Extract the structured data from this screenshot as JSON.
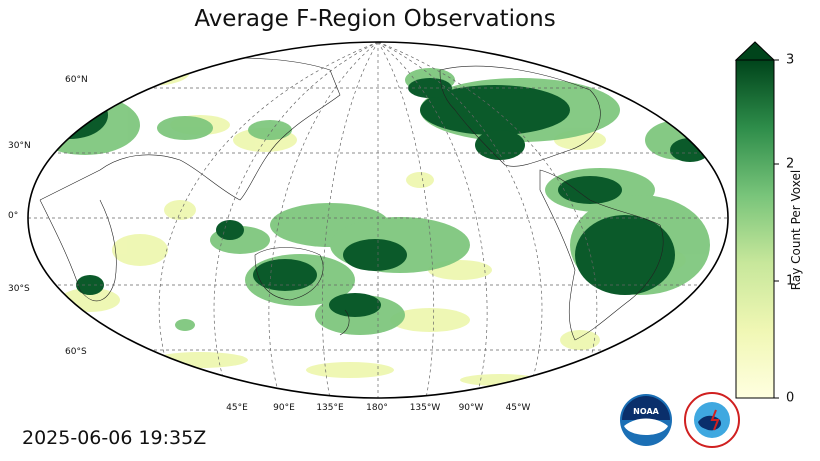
{
  "title": "Average F-Region Observations",
  "timestamp": "2025-06-06 19:35Z",
  "latitude_labels": [
    "60°N",
    "30°N",
    "0°",
    "30°S",
    "60°S"
  ],
  "longitude_labels": [
    "45°E",
    "90°E",
    "135°E",
    "180°",
    "135°W",
    "90°W",
    "45°W"
  ],
  "colorbar": {
    "label": "Ray Count Per Voxel",
    "ticks": [
      "0",
      "1",
      "2",
      "3"
    ],
    "range": [
      0,
      3
    ],
    "extend": "max",
    "colors": {
      "low": "#ffffe0",
      "mid": "#78c47a",
      "high": "#00441b"
    }
  },
  "logos": {
    "noaa": "NOAA",
    "nws": "NATIONAL WEATHER SERVICE"
  },
  "icons": {
    "noaa": "noaa-logo-icon",
    "nws": "nws-logo-icon"
  }
}
